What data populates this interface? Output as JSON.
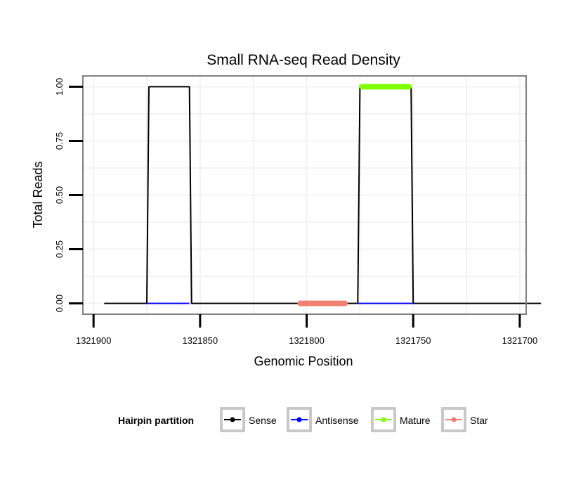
{
  "chart_data": {
    "type": "line",
    "title": "Small RNA-seq Read Density",
    "xlabel": "Genomic Position",
    "ylabel": "Total Reads",
    "xlim": [
      1321905,
      1321697
    ],
    "ylim": [
      -0.05,
      1.05
    ],
    "x_reversed": true,
    "grid": true,
    "x_ticks": [
      1321900,
      1321850,
      1321800,
      1321750,
      1321700
    ],
    "x_tick_labels": [
      "1321900",
      "1321850",
      "1321800",
      "1321750",
      "1321700"
    ],
    "y_ticks": [
      0,
      0.25,
      0.5,
      0.75,
      1.0
    ],
    "y_tick_labels": [
      "0.00",
      "0.25",
      "0.50",
      "0.75",
      "1.00"
    ],
    "legend": {
      "title": "Hairpin partition",
      "position": "bottom",
      "entries": [
        "Sense",
        "Antisense",
        "Mature",
        "Star"
      ]
    },
    "series": [
      {
        "name": "Sense",
        "color": "#000000",
        "x": [
          1321895,
          1321875,
          1321874,
          1321855,
          1321854,
          1321776,
          1321775,
          1321751,
          1321750,
          1321690
        ],
        "y": [
          0,
          0,
          1,
          1,
          0,
          0,
          1,
          1,
          0,
          0
        ]
      },
      {
        "name": "Antisense",
        "color": "#0000ff",
        "x": [
          1321875,
          1321855,
          1321776,
          1321750
        ],
        "y": [
          0,
          0,
          0,
          0
        ],
        "segments": [
          [
            0,
            1
          ],
          [
            2,
            3
          ]
        ]
      },
      {
        "name": "Mature",
        "color": "#7fff00",
        "x": [
          1321774,
          1321752
        ],
        "y": [
          1,
          1
        ]
      },
      {
        "name": "Star",
        "color": "#f08070",
        "x": [
          1321803,
          1321782
        ],
        "y": [
          0,
          0
        ]
      }
    ]
  }
}
